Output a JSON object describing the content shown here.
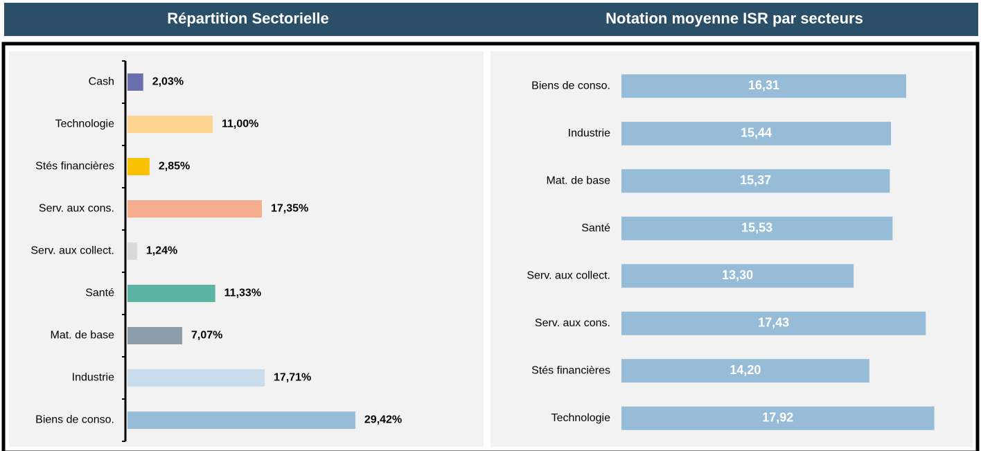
{
  "chart_data": [
    {
      "type": "bar",
      "orientation": "horizontal",
      "title": "Répartition Sectorielle",
      "categories": [
        "Cash",
        "Technologie",
        "Stés financières",
        "Serv. aux cons.",
        "Serv. aux collect.",
        "Santé",
        "Mat. de base",
        "Industrie",
        "Biens de conso."
      ],
      "values": [
        2.03,
        11.0,
        2.85,
        17.35,
        1.24,
        11.33,
        7.07,
        17.71,
        29.42
      ],
      "value_labels": [
        "2,03%",
        "11,00%",
        "2,85%",
        "17,35%",
        "1,24%",
        "11,33%",
        "7,07%",
        "17,71%",
        "29,42%"
      ],
      "colors": [
        "#6b6fae",
        "#fdd590",
        "#f8c200",
        "#f6ad8e",
        "#d9d9d9",
        "#5bb5a2",
        "#8c9ca8",
        "#c9dcec",
        "#96bcd7"
      ]
    },
    {
      "type": "bar",
      "orientation": "horizontal",
      "title": "Notation moyenne ISR par secteurs",
      "categories": [
        "Biens de conso.",
        "Industrie",
        "Mat. de base",
        "Santé",
        "Serv. aux collect.",
        "Serv. aux cons.",
        "Stés financières",
        "Technologie"
      ],
      "values": [
        16.31,
        15.44,
        15.37,
        15.53,
        13.3,
        17.43,
        14.2,
        17.92
      ],
      "value_labels": [
        "16,31",
        "15,44",
        "15,37",
        "15,53",
        "13,30",
        "17,43",
        "14,20",
        "17,92"
      ],
      "color": "#96bcd7"
    }
  ]
}
